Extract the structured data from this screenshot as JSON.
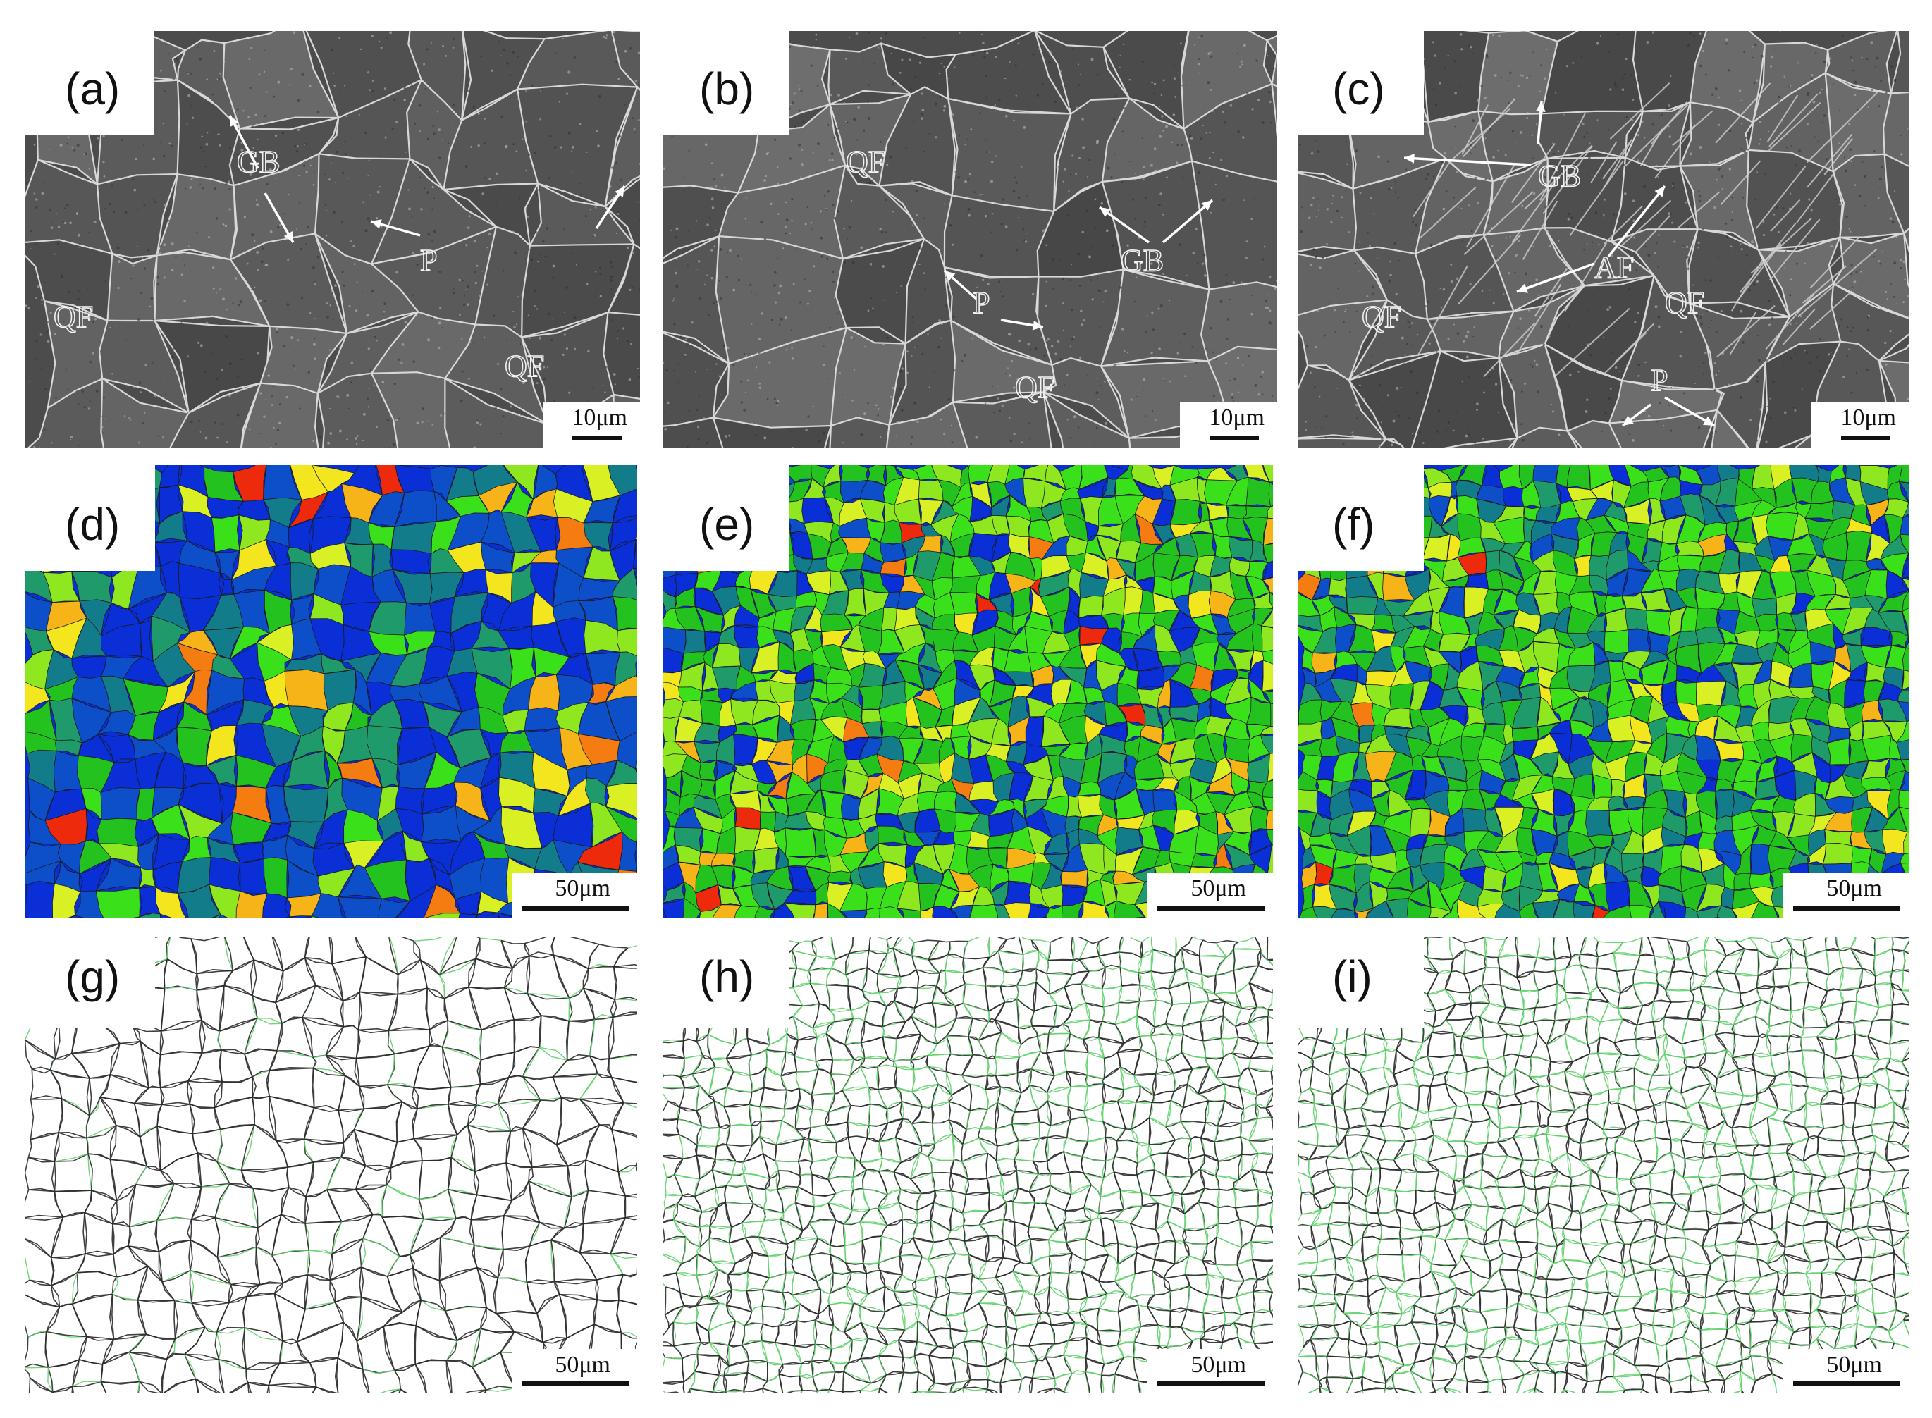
{
  "figure": {
    "panels": [
      {
        "id": "a",
        "label": "(a)",
        "type": "sem",
        "scale": "10μm",
        "annotations": [
          "GB",
          "P",
          "QF",
          "QF"
        ]
      },
      {
        "id": "b",
        "label": "(b)",
        "type": "sem",
        "scale": "10μm",
        "annotations": [
          "QF",
          "GB",
          "P",
          "QF"
        ]
      },
      {
        "id": "c",
        "label": "(c)",
        "type": "sem",
        "scale": "10μm",
        "annotations": [
          "GB",
          "AF",
          "QF",
          "QF",
          "P"
        ]
      },
      {
        "id": "d",
        "label": "(d)",
        "type": "ebsd",
        "scale": "50μm"
      },
      {
        "id": "e",
        "label": "(e)",
        "type": "ebsd",
        "scale": "50μm"
      },
      {
        "id": "f",
        "label": "(f)",
        "type": "ebsd",
        "scale": "50μm"
      },
      {
        "id": "g",
        "label": "(g)",
        "type": "boundary",
        "scale": "50μm"
      },
      {
        "id": "h",
        "label": "(h)",
        "type": "boundary",
        "scale": "50μm"
      },
      {
        "id": "i",
        "label": "(i)",
        "type": "boundary",
        "scale": "50μm"
      }
    ],
    "ebsd_palette": [
      "#0a2fd6",
      "#0d4fc8",
      "#137c8a",
      "#1f9a6a",
      "#23c21e",
      "#3ae01a",
      "#8fe81f",
      "#d8f024",
      "#f4e61e",
      "#f7b418",
      "#f57c10",
      "#ee2a0c"
    ],
    "boundary_colors": {
      "high_angle": "#2a2a2a",
      "low_angle": "#5fd26a"
    }
  }
}
